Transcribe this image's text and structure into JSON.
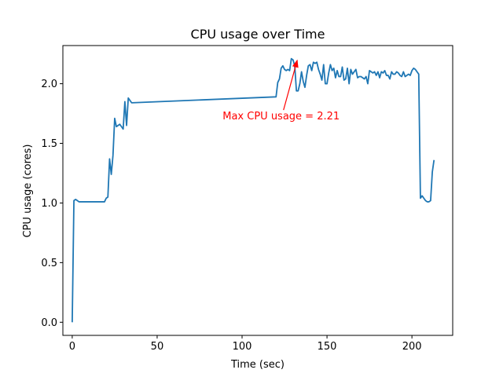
{
  "chart_data": {
    "type": "line",
    "title": "CPU usage over Time",
    "xlabel": "Time (sec)",
    "ylabel": "CPU usage (cores)",
    "xlim": [
      -5.5,
      224
    ],
    "ylim": [
      -0.11,
      2.32
    ],
    "xticks": [
      0,
      50,
      100,
      150,
      200
    ],
    "xtick_labels": [
      "0",
      "50",
      "100",
      "150",
      "200"
    ],
    "yticks": [
      0.0,
      0.5,
      1.0,
      1.5,
      2.0
    ],
    "ytick_labels": [
      "0.0",
      "0.5",
      "1.0",
      "1.5",
      "2.0"
    ],
    "grid": false,
    "series": [
      {
        "name": "",
        "color": "#1f77b4",
        "x": [
          0,
          1,
          2,
          3,
          4,
          18,
          19,
          20,
          21,
          22,
          23,
          24,
          25,
          26,
          27,
          28,
          29,
          30,
          31,
          32,
          33,
          34,
          35,
          120,
          121,
          122,
          123,
          124,
          125,
          126,
          127,
          128,
          129,
          130,
          131,
          132,
          133,
          134,
          135,
          136,
          137,
          138,
          139,
          140,
          141,
          142,
          143,
          144,
          145,
          146,
          147,
          148,
          149,
          150,
          151,
          152,
          153,
          154,
          155,
          156,
          157,
          158,
          159,
          160,
          161,
          162,
          163,
          164,
          165,
          166,
          167,
          168,
          169,
          170,
          171,
          172,
          173,
          174,
          175,
          176,
          177,
          178,
          179,
          180,
          181,
          182,
          183,
          184,
          185,
          186,
          187,
          188,
          189,
          190,
          191,
          192,
          193,
          194,
          195,
          196,
          197,
          198,
          199,
          200,
          201,
          202,
          203,
          204,
          205,
          206,
          207,
          208,
          209,
          210,
          211,
          212,
          213
        ],
        "y": [
          0.0,
          1.02,
          1.03,
          1.02,
          1.01,
          1.01,
          1.01,
          1.04,
          1.05,
          1.37,
          1.24,
          1.4,
          1.71,
          1.64,
          1.65,
          1.66,
          1.64,
          1.62,
          1.85,
          1.65,
          1.88,
          1.86,
          1.84,
          1.89,
          2.01,
          2.04,
          2.13,
          2.15,
          2.12,
          2.11,
          2.12,
          2.11,
          2.21,
          2.2,
          2.15,
          1.94,
          1.94,
          2.0,
          2.1,
          2.02,
          1.97,
          2.07,
          2.15,
          2.16,
          2.11,
          2.18,
          2.17,
          2.18,
          2.12,
          2.08,
          2.03,
          2.16,
          2.0,
          2.0,
          2.09,
          2.16,
          2.11,
          2.13,
          2.05,
          2.11,
          2.06,
          2.06,
          2.14,
          2.03,
          2.04,
          2.13,
          2.0,
          2.12,
          2.08,
          2.1,
          2.12,
          2.05,
          2.06,
          2.06,
          2.05,
          2.04,
          2.06,
          2.0,
          2.11,
          2.1,
          2.09,
          2.1,
          2.07,
          2.1,
          2.05,
          2.1,
          2.09,
          2.11,
          2.07,
          2.07,
          2.04,
          2.1,
          2.08,
          2.08,
          2.1,
          2.09,
          2.07,
          2.06,
          2.1,
          2.06,
          2.07,
          2.08,
          2.07,
          2.11,
          2.13,
          2.12,
          2.1,
          2.08,
          1.04,
          1.06,
          1.04,
          1.02,
          1.01,
          1.01,
          1.02,
          1.26,
          1.36
        ]
      }
    ],
    "annotations": [
      {
        "text": "Max CPU usage = 2.21",
        "point": [
          132,
          2.21
        ],
        "text_pos": [
          123,
          1.7
        ],
        "color": "#ff0000"
      }
    ]
  }
}
